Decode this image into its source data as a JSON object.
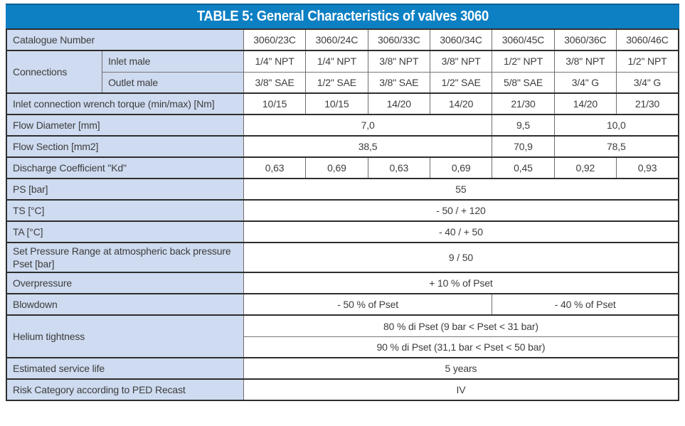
{
  "title": "TABLE 5: General Characteristics of valves 3060",
  "colors": {
    "header_bg": "#0d80c4",
    "header_top_line": "#0a5e92",
    "label_cell_bg": "#cedbf0",
    "border_dark": "#2e2e2e",
    "border_light": "#6e6e6e",
    "text": "#3d3d3d",
    "title_text": "#ffffff"
  },
  "table": {
    "columns": [
      "3060/23C",
      "3060/24C",
      "3060/33C",
      "3060/34C",
      "3060/45C",
      "3060/36C",
      "3060/46C"
    ],
    "rows": {
      "catalogue": {
        "label": "Catalogue Number"
      },
      "connections": {
        "label": "Connections",
        "inlet": {
          "label": "Inlet male",
          "values": [
            "1/4\" NPT",
            "1/4\" NPT",
            "3/8\" NPT",
            "3/8\" NPT",
            "1/2\" NPT",
            "3/8\" NPT",
            "1/2\" NPT"
          ]
        },
        "outlet": {
          "label": "Outlet male",
          "values": [
            "3/8\" SAE",
            "1/2\" SAE",
            "3/8\" SAE",
            "1/2\" SAE",
            "5/8\" SAE",
            "3/4\" G",
            "3/4\" G"
          ]
        }
      },
      "torque": {
        "label": "Inlet connection wrench torque (min/max) [Nm]",
        "values": [
          "10/15",
          "10/15",
          "14/20",
          "14/20",
          "21/30",
          "14/20",
          "21/30"
        ]
      },
      "flow_diameter": {
        "label": "Flow Diameter [mm]",
        "values": [
          "7,0",
          "9,5",
          "10,0"
        ]
      },
      "flow_section": {
        "label": "Flow Section [mm2]",
        "values": [
          "38,5",
          "70,9",
          "78,5"
        ]
      },
      "discharge": {
        "label": "Discharge Coefficient \"Kd\"",
        "values": [
          "0,63",
          "0,69",
          "0,63",
          "0,69",
          "0,45",
          "0,92",
          "0,93"
        ]
      },
      "ps": {
        "label": "PS [bar]",
        "value": "55"
      },
      "ts": {
        "label": "TS [°C]",
        "value": "- 50  /  + 120"
      },
      "ta": {
        "label": "TA [°C]",
        "value": "- 40  /  + 50"
      },
      "set_pressure": {
        "label": "Set Pressure Range at atmospheric back pressure Pset [bar]",
        "value": "9  /  50"
      },
      "overpressure": {
        "label": "Overpressure",
        "value": "+ 10 % of Pset"
      },
      "blowdown": {
        "label": "Blowdown",
        "left": "- 50 % of Pset",
        "right": "- 40 % of Pset"
      },
      "helium": {
        "label": "Helium tightness",
        "row1": "80 % di Pset   (9 bar < Pset < 31 bar)",
        "row2": "90 % di Pset   (31,1 bar < Pset < 50 bar)"
      },
      "service_life": {
        "label": "Estimated service life",
        "value": "5 years"
      },
      "risk": {
        "label": "Risk Category according to PED Recast",
        "value": "IV"
      }
    }
  }
}
